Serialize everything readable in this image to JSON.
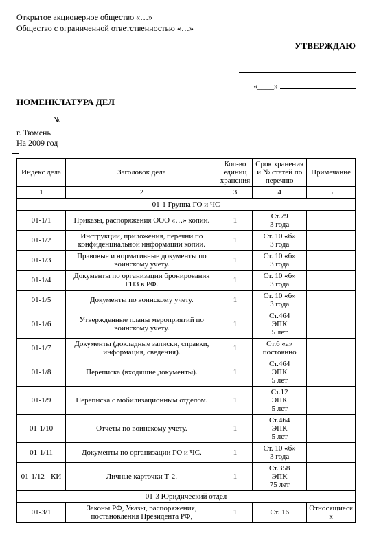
{
  "header": {
    "line1": "Открытое акционерное общество «…»",
    "line2": "Общество с ограниченной ответственностью «…»"
  },
  "approval": {
    "title": "УТВЕРЖДАЮ",
    "date_prefix": "«____»",
    "date_suffix": ""
  },
  "doc": {
    "title": "НОМЕНКЛАТУРА ДЕЛ",
    "number_label": "№",
    "city": "г. Тюмень",
    "year": "На 2009 год"
  },
  "columns": {
    "c1": "Индекс дела",
    "c2": "Заголовок дела",
    "c3": "Кол-во единиц хранения",
    "c4": "Срок хранения и № статей по перечню",
    "c5": "Примечание",
    "n1": "1",
    "n2": "2",
    "n3": "3",
    "n4": "4",
    "n5": "5"
  },
  "sections": [
    {
      "label": "01-1 Группа ГО и ЧС"
    },
    {
      "label": "01-3 Юридический отдел"
    }
  ],
  "rows1": [
    {
      "idx": "01-1/1",
      "title": "Приказы, распоряжения ООО «…» копии.",
      "qty": "1",
      "storage": "Ст.79\n3 года",
      "note": ""
    },
    {
      "idx": "01-1/2",
      "title": "Инструкции, приложения, перечни по конфиденциальной информации копии.",
      "qty": "1",
      "storage": "Ст. 10 «б»\n3 года",
      "note": ""
    },
    {
      "idx": "01-1/3",
      "title": "Правовые и нормативные документы по воинскому учету.",
      "qty": "1",
      "storage": "Ст. 10 «б»\n3 года",
      "note": ""
    },
    {
      "idx": "01-1/4",
      "title": "Документы по организации бронирования ГПЗ в РФ.",
      "qty": "1",
      "storage": "Ст. 10 «б»\n3 года",
      "note": ""
    },
    {
      "idx": "01-1/5",
      "title": "Документы по воинскому учету.",
      "qty": "1",
      "storage": "Ст. 10 «б»\n3 года",
      "note": ""
    },
    {
      "idx": "01-1/6",
      "title": "Утвержденные планы мероприятий по воинскому учету.",
      "qty": "1",
      "storage": "Ст.464\nЭПК\n5 лет",
      "note": ""
    },
    {
      "idx": "01-1/7",
      "title": "Документы (докладные записки, справки, информация, сведения).",
      "qty": "1",
      "storage": "Ст.6 «а»\nпостоянно",
      "note": ""
    },
    {
      "idx": "01-1/8",
      "title": "Переписка (входящие документы).",
      "qty": "1",
      "storage": "Ст.464\nЭПК\n5 лет",
      "note": ""
    },
    {
      "idx": "01-1/9",
      "title": "Переписка с мобилизационным отделом.",
      "qty": "1",
      "storage": "Ст.12\nЭПК\n5 лет",
      "note": ""
    },
    {
      "idx": "01-1/10",
      "title": "Отчеты по воинскому учету.",
      "qty": "1",
      "storage": "Ст.464\nЭПК\n5 лет",
      "note": ""
    },
    {
      "idx": "01-1/11",
      "title": "Документы по организации ГО и ЧС.",
      "qty": "1",
      "storage": "Ст. 10 «б»\n3 года",
      "note": ""
    },
    {
      "idx": "01-1/12 - КИ",
      "title": "Личные карточки Т-2.",
      "qty": "1",
      "storage": "Ст.358\nЭПК\n75 лет",
      "note": ""
    }
  ],
  "rows2": [
    {
      "idx": "01-3/1",
      "title": "Законы РФ, Указы, распоряжения, постановления Президента РФ,",
      "qty": "1",
      "storage": "Ст. 16",
      "note": "Относящиеся к"
    }
  ]
}
